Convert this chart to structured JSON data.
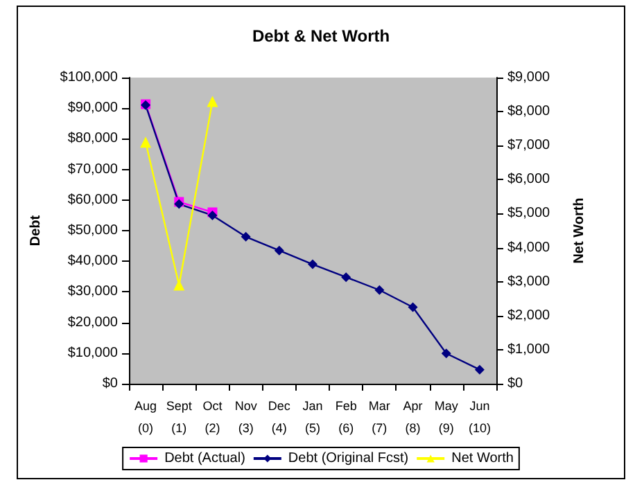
{
  "chart_data": {
    "type": "line",
    "title": "Debt & Net Worth",
    "ylabel": "Debt",
    "y2label": "Net Worth",
    "categories": [
      "Aug (0)",
      "Sept (1)",
      "Oct (2)",
      "Nov (3)",
      "Dec (4)",
      "Jan (5)",
      "Feb (6)",
      "Mar (7)",
      "Apr (8)",
      "May (9)",
      "Jun (10)"
    ],
    "series": [
      {
        "name": "Debt (Actual)",
        "color": "#ff00ff",
        "marker": "square",
        "values": [
          91300,
          59400,
          56000,
          null,
          null,
          null,
          null,
          null,
          null,
          null,
          null
        ]
      },
      {
        "name": "Debt (Original Fcst)",
        "color": "#000080",
        "marker": "diamond",
        "values": [
          91000,
          58700,
          55000,
          48000,
          43500,
          39000,
          34800,
          30600,
          25000,
          9900,
          4600
        ]
      },
      {
        "name": "Net Worth",
        "color": "#ffff00",
        "marker": "triangle",
        "axis": "y2",
        "values": [
          7100,
          2900,
          8300,
          null,
          null,
          null,
          null,
          null,
          null,
          null,
          null
        ]
      }
    ],
    "ylim": [
      0,
      100000
    ],
    "yticks": [
      {
        "value": 0,
        "label": "$0"
      },
      {
        "value": 10000,
        "label": "$10,000"
      },
      {
        "value": 20000,
        "label": "$20,000"
      },
      {
        "value": 30000,
        "label": "$30,000"
      },
      {
        "value": 40000,
        "label": "$40,000"
      },
      {
        "value": 50000,
        "label": "$50,000"
      },
      {
        "value": 60000,
        "label": "$60,000"
      },
      {
        "value": 70000,
        "label": "$70,000"
      },
      {
        "value": 80000,
        "label": "$80,000"
      },
      {
        "value": 90000,
        "label": "$90,000"
      },
      {
        "value": 100000,
        "label": "$100,000"
      }
    ],
    "y2lim": [
      0,
      9000
    ],
    "y2ticks": [
      {
        "value": 0,
        "label": "$0"
      },
      {
        "value": 1000,
        "label": "$1,000"
      },
      {
        "value": 2000,
        "label": "$2,000"
      },
      {
        "value": 3000,
        "label": "$3,000"
      },
      {
        "value": 4000,
        "label": "$4,000"
      },
      {
        "value": 5000,
        "label": "$5,000"
      },
      {
        "value": 6000,
        "label": "$6,000"
      },
      {
        "value": 7000,
        "label": "$7,000"
      },
      {
        "value": 8000,
        "label": "$8,000"
      },
      {
        "value": 9000,
        "label": "$9,000"
      }
    ],
    "grid": false,
    "legend": "bottom"
  }
}
